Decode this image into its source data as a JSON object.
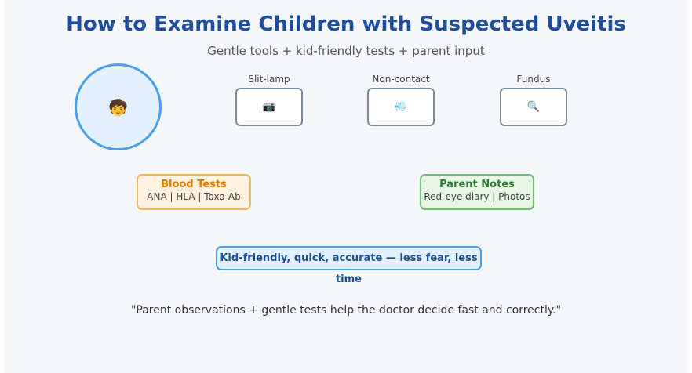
{
  "header": {
    "title": "How to Examine Children with Suspected Uveitis",
    "subtitle": "Gentle tools + kid-friendly tests + parent input"
  },
  "child": {
    "icon": "🧒"
  },
  "tools": [
    {
      "label": "Slit-lamp",
      "icon": "📷"
    },
    {
      "label": "Non-contact",
      "icon": "💨"
    },
    {
      "label": "Fundus",
      "icon": "🔍"
    }
  ],
  "cards": [
    {
      "title": "Blood Tests",
      "text": "ANA | HLA | Toxo-Ab"
    },
    {
      "title": "Parent Notes",
      "text": "Red-eye diary | Photos"
    }
  ],
  "banner": "Kid-friendly, quick, accurate — less fear, less time",
  "quote": "\"Parent observations + gentle tests help the doctor decide fast and correctly.\""
}
